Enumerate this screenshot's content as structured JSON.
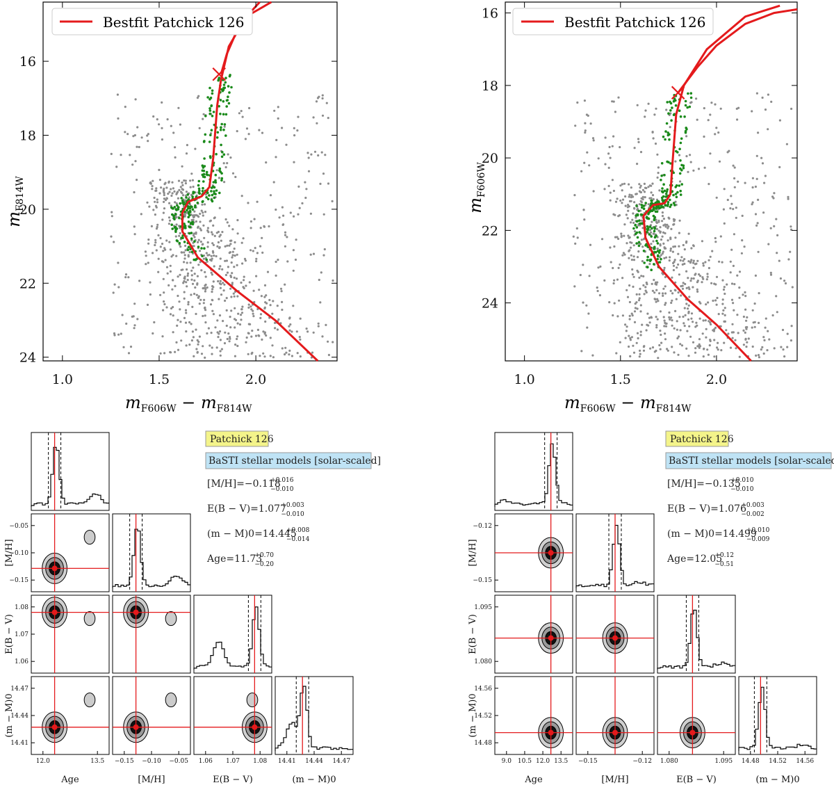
{
  "chart_data": [
    {
      "type": "scatter",
      "panel": "top-left",
      "legend": "Bestfit Patchick 126",
      "xlabel": "m_F606W − m_F814W",
      "ylabel": "m_F814W",
      "xlim": [
        0.9,
        2.42
      ],
      "ylim": [
        24.1,
        14.4
      ],
      "xticks": [
        "1.0",
        "1.5",
        "2.0"
      ],
      "yticks": [
        "16",
        "18",
        "20",
        "22",
        "24"
      ],
      "isochrone": {
        "lower": [
          [
            2.32,
            24.1
          ],
          [
            2.1,
            23.0
          ],
          [
            1.9,
            22.2
          ],
          [
            1.7,
            21.3
          ],
          [
            1.62,
            20.6
          ],
          [
            1.62,
            20.1
          ],
          [
            1.65,
            19.8
          ],
          [
            1.72,
            19.65
          ],
          [
            1.76,
            19.4
          ],
          [
            1.78,
            18.6
          ],
          [
            1.8,
            17.2
          ],
          [
            1.82,
            16.5
          ],
          [
            1.86,
            15.6
          ],
          [
            1.95,
            14.8
          ],
          [
            2.02,
            14.4
          ]
        ],
        "upper": [
          [
            1.82,
            16.35
          ],
          [
            1.85,
            15.8
          ],
          [
            1.9,
            15.2
          ],
          [
            1.98,
            14.7
          ],
          [
            2.08,
            14.4
          ]
        ]
      },
      "marker": {
        "x": 1.81,
        "y": 16.35
      },
      "members": {
        "color": "#1a8a1a"
      },
      "field": {
        "color": "#8c8c8c"
      }
    },
    {
      "type": "scatter",
      "panel": "top-right",
      "legend": "Bestfit Patchick 126",
      "xlabel": "m_F606W − m_F814W",
      "ylabel": "m_F606W",
      "xlim": [
        0.9,
        2.42
      ],
      "ylim": [
        25.6,
        15.7
      ],
      "xticks": [
        "1.0",
        "1.5",
        "2.0"
      ],
      "yticks": [
        "16",
        "18",
        "20",
        "22",
        "24"
      ],
      "isochrone": {
        "lower": [
          [
            2.18,
            25.6
          ],
          [
            2.0,
            24.6
          ],
          [
            1.85,
            23.9
          ],
          [
            1.7,
            23.0
          ],
          [
            1.63,
            22.2
          ],
          [
            1.62,
            21.6
          ],
          [
            1.67,
            21.3
          ],
          [
            1.73,
            21.25
          ],
          [
            1.76,
            21.0
          ],
          [
            1.77,
            20.2
          ],
          [
            1.79,
            18.8
          ],
          [
            1.83,
            18.0
          ],
          [
            1.95,
            17.0
          ],
          [
            2.15,
            16.1
          ],
          [
            2.33,
            15.8
          ]
        ],
        "upper": [
          [
            1.8,
            18.2
          ],
          [
            1.9,
            17.5
          ],
          [
            2.0,
            16.9
          ],
          [
            2.15,
            16.3
          ],
          [
            2.3,
            16.0
          ],
          [
            2.42,
            15.9
          ]
        ]
      },
      "marker": {
        "x": 1.8,
        "y": 18.2
      },
      "members": {
        "color": "#1a8a1a"
      },
      "field": {
        "color": "#8c8c8c"
      }
    }
  ],
  "corner_left": {
    "title": "Patchick 126",
    "models": "BaSTI stellar models [solar-scaled]",
    "stats": [
      {
        "name": "[M/H]",
        "value": "−0.118",
        "plus": "+0.016",
        "minus": "−0.010"
      },
      {
        "name": "E(B − V)",
        "value": "1.077",
        "plus": "+0.003",
        "minus": "−0.010"
      },
      {
        "name": "(m − M)0",
        "value": "14.445",
        "plus": "+0.008",
        "minus": "−0.014"
      },
      {
        "name": "Age",
        "value": "11.73",
        "plus": "+0.70",
        "minus": "−0.20"
      }
    ],
    "labels": [
      "Age",
      "[M/H]",
      "E(B − V)",
      "(m − M)0"
    ],
    "ticks": {
      "age": [
        "12.0",
        "13.5"
      ],
      "mh": [
        "−0.15",
        "−0.10",
        "−0.05"
      ],
      "ebv": [
        "1.06",
        "1.07",
        "1.08"
      ],
      "dm": [
        "14.41",
        "14.44",
        "14.47"
      ]
    }
  },
  "corner_right": {
    "title": "Patchick 126",
    "models": "BaSTI stellar models [solar-scaled]",
    "stats": [
      {
        "name": "[M/H]",
        "value": "−0.135",
        "plus": "+0.010",
        "minus": "−0.010"
      },
      {
        "name": "E(B − V)",
        "value": "1.076",
        "plus": "+0.003",
        "minus": "−0.002"
      },
      {
        "name": "(m − M)0",
        "value": "14.499",
        "plus": "+0.010",
        "minus": "−0.009"
      },
      {
        "name": "Age",
        "value": "12.05",
        "plus": "+0.12",
        "minus": "−0.51"
      }
    ],
    "labels": [
      "Age",
      "[M/H]",
      "E(B − V)",
      "(m − M)0"
    ],
    "ticks": {
      "age": [
        "9.0",
        "10.5",
        "12.0",
        "13.5"
      ],
      "mh": [
        "−0.15",
        "−0.12"
      ],
      "ebv": [
        "1.080",
        "1.095"
      ],
      "dm": [
        "14.48",
        "14.52",
        "14.56"
      ]
    }
  },
  "colors": {
    "red": "#e41a1c",
    "gray": "#8c8c8c",
    "green": "#1a8a1a",
    "yellow": "#f4f48a",
    "blue": "#bfe3f5"
  }
}
